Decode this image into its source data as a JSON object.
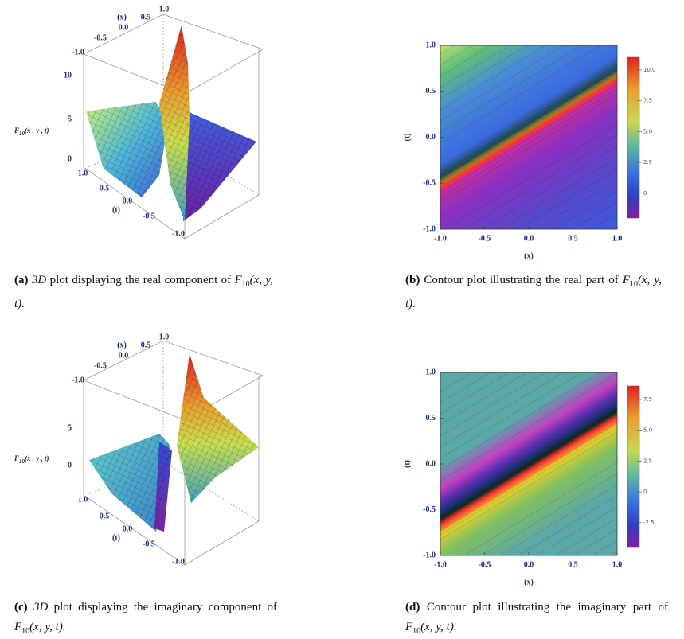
{
  "figure": {
    "panels": [
      {
        "caption": {
          "label": "(a)",
          "lead": "3D",
          "text": "plot displaying the real component of",
          "math": {
            "base": "F",
            "sub": "10",
            "args": "(x, y, t)."
          }
        },
        "plot": {
          "x_label": "(x)",
          "t_label": "(t)",
          "z_label": {
            "base": "F",
            "sub": "10",
            "args": "(x , y , t)"
          },
          "x_ticks": [
            "-1.0",
            "-0.5",
            "0.0",
            "0.5",
            "1.0"
          ],
          "t_ticks": [
            "1.0",
            "0.5",
            "0.0",
            "-0.5",
            "-1.0"
          ],
          "z_ticks": [
            "10",
            "5",
            "0"
          ]
        }
      },
      {
        "caption": {
          "label": "(b)",
          "text": "Contour plot illustrating the real part of",
          "math": {
            "base": "F",
            "sub": "10",
            "args": "(x, y, t)."
          }
        },
        "plot": {
          "x_label": "(x)",
          "y_label": "(t)",
          "x_ticks": [
            "-1.0",
            "-0.5",
            "0.0",
            "0.5",
            "1.0"
          ],
          "y_ticks": [
            "1.0",
            "0.5",
            "0.0",
            "-0.5",
            "-1.0"
          ],
          "colorbar_ticks": [
            "10.0",
            "7.5",
            "5.0",
            "2.5",
            "0"
          ]
        }
      },
      {
        "caption": {
          "label": "(c)",
          "lead": "3D",
          "text": "plot displaying the imaginary component of",
          "math": {
            "base": "F",
            "sub": "10",
            "args": "(x, y, t)."
          }
        },
        "plot": {
          "x_label": "(x)",
          "t_label": "(t)",
          "z_label": {
            "base": "F",
            "sub": "10",
            "args": "(x , y , t)"
          },
          "x_ticks": [
            "-1.0",
            "-0.5",
            "0.0",
            "0.5",
            "1.0"
          ],
          "t_ticks": [
            "1.0",
            "0.5",
            "0.0",
            "-0.5",
            "-1.0"
          ],
          "z_ticks": [
            "5",
            "0"
          ]
        }
      },
      {
        "caption": {
          "label": "(d)",
          "text": "Contour plot illustrating the imaginary part of",
          "math": {
            "base": "F",
            "sub": "10",
            "args": "(x, y, t)."
          }
        },
        "plot": {
          "x_label": "(x)",
          "y_label": "(t)",
          "x_ticks": [
            "-1.0",
            "-0.5",
            "0.0",
            "0.5",
            "1.0"
          ],
          "y_ticks": [
            "1.0",
            "0.5",
            "0.0",
            "-0.5",
            "-1.0"
          ],
          "colorbar_ticks": [
            "7.5",
            "5.0",
            "2.5",
            "0",
            "-2.5"
          ]
        }
      }
    ]
  }
}
